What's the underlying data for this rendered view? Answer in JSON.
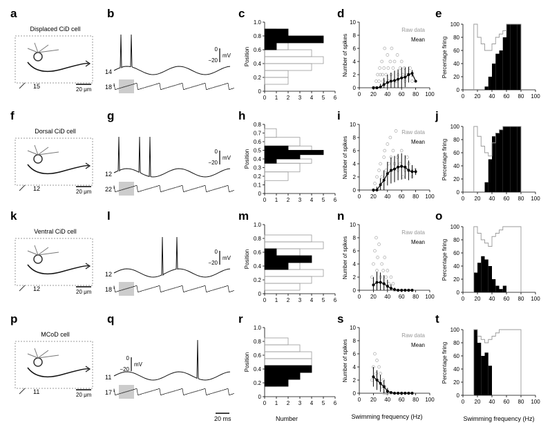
{
  "panel_letters": [
    "a",
    "b",
    "c",
    "d",
    "e",
    "f",
    "g",
    "h",
    "i",
    "j",
    "k",
    "l",
    "m",
    "n",
    "o",
    "p",
    "q",
    "r",
    "s",
    "t"
  ],
  "rows": [
    {
      "cell_label": "Displaced CiD cell",
      "seg_number": "15",
      "scale_label": "20 μm",
      "trace_top_id": "14",
      "trace_bot_id": "18",
      "volt_label": "mV",
      "volt_zero": "0",
      "volt_neg": "−20",
      "hist_ylabel": "Position",
      "spike_ylabel": "Number of spikes",
      "firing_ylabel": "Percentage firing",
      "legend_raw": "Raw data",
      "legend_mean": "Mean"
    },
    {
      "cell_label": "Dorsal CiD cell",
      "seg_number": "12",
      "scale_label": "20 μm",
      "trace_top_id": "12",
      "trace_bot_id": "22",
      "volt_label": "mV",
      "volt_zero": "0",
      "volt_neg": "−20",
      "hist_ylabel": "Position",
      "spike_ylabel": "Number of spikes",
      "firing_ylabel": "Percentage firing",
      "legend_raw": "Raw data",
      "legend_mean": "Mean"
    },
    {
      "cell_label": "Ventral CiD cell",
      "seg_number": "12",
      "scale_label": "20 μm",
      "trace_top_id": "12",
      "trace_bot_id": "18",
      "volt_label": "mV",
      "volt_zero": "0",
      "volt_neg": "−20",
      "hist_ylabel": "Position",
      "spike_ylabel": "Number of spikes",
      "firing_ylabel": "Percentage firing",
      "legend_raw": "Raw data",
      "legend_mean": "Mean"
    },
    {
      "cell_label": "MCoD cell",
      "seg_number": "11",
      "scale_label": "20 μm",
      "trace_top_id": "11",
      "trace_bot_id": "17",
      "volt_label": "mV",
      "volt_zero": "0",
      "volt_neg": "−20",
      "hist_ylabel": "Position",
      "spike_ylabel": "Number of spikes",
      "firing_ylabel": "Percentage firing",
      "legend_raw": "Raw data",
      "legend_mean": "Mean"
    }
  ],
  "bottom_labels": {
    "number": "Number",
    "swim_freq_s": "Swimming frequency (Hz)",
    "swim_freq_t": "Swimming frequency (Hz)",
    "time_scale": "20 ms"
  },
  "chart_data": [
    {
      "type": "bar",
      "panel": "c",
      "orientation": "horizontal",
      "ylabel": "Position",
      "xlabel": "Number",
      "xlim": [
        0,
        6
      ],
      "ylim": [
        0,
        1.0
      ],
      "x_ticks": [
        0,
        1,
        2,
        3,
        4,
        5,
        6
      ],
      "y_ticks": [
        0,
        0.2,
        0.4,
        0.6,
        0.8,
        1.0
      ],
      "bin_edges": [
        0.1,
        0.2,
        0.3,
        0.4,
        0.5,
        0.6,
        0.7,
        0.8,
        0.9
      ],
      "series": [
        {
          "name": "filled",
          "values": [
            0,
            0,
            0,
            0,
            0,
            1,
            5,
            2
          ]
        },
        {
          "name": "outline",
          "values": [
            2,
            2,
            4,
            5,
            4,
            2,
            2,
            1
          ]
        }
      ]
    },
    {
      "type": "scatter",
      "panel": "d",
      "ylabel": "Number of spikes",
      "xlabel": "Swimming frequency (Hz)",
      "xlim": [
        0,
        100
      ],
      "ylim": [
        0,
        10
      ],
      "x_ticks": [
        0,
        20,
        40,
        60,
        80,
        100
      ],
      "y_ticks": [
        0,
        2,
        4,
        6,
        8,
        10
      ],
      "series": [
        {
          "name": "Raw data",
          "x": [
            20,
            22,
            24,
            25,
            26,
            28,
            29,
            30,
            32,
            33,
            34,
            35,
            36,
            38,
            40,
            41,
            42,
            44,
            45,
            46,
            48,
            50,
            52,
            54,
            55,
            58,
            60,
            62,
            64,
            65,
            68,
            70,
            72,
            75
          ],
          "y": [
            0,
            0,
            1,
            0,
            2,
            1,
            3,
            2,
            4,
            2,
            1,
            3,
            6,
            2,
            5,
            3,
            1,
            4,
            2,
            6,
            3,
            4,
            1,
            5,
            2,
            3,
            4,
            2,
            3,
            1,
            2,
            2,
            3,
            1
          ]
        },
        {
          "name": "Mean",
          "x": [
            20,
            25,
            30,
            35,
            40,
            45,
            50,
            55,
            60,
            65,
            70,
            75,
            80
          ],
          "y": [
            0,
            0,
            0.1,
            0.5,
            0.8,
            1.0,
            1.1,
            1.3,
            1.5,
            1.6,
            2.0,
            2.2,
            1.0
          ],
          "err": [
            0,
            0.2,
            0.5,
            1,
            1.2,
            1.3,
            1.5,
            1.5,
            1.6,
            1.5,
            1.2,
            0.5,
            0
          ]
        }
      ]
    },
    {
      "type": "bar",
      "panel": "e",
      "ylabel": "Percentage firing",
      "xlabel": "Swimming frequency (Hz)",
      "xlim": [
        0,
        100
      ],
      "ylim": [
        0,
        100
      ],
      "x_ticks": [
        0,
        20,
        40,
        60,
        80,
        100
      ],
      "y_ticks": [
        0,
        20,
        40,
        60,
        80,
        100
      ],
      "bin_edges": [
        15,
        20,
        25,
        30,
        35,
        40,
        45,
        50,
        55,
        60,
        65,
        70,
        75,
        80
      ],
      "series": [
        {
          "name": "filled",
          "values": [
            0,
            0,
            0,
            5,
            20,
            40,
            55,
            60,
            80,
            100,
            100,
            100,
            100
          ]
        },
        {
          "name": "outline",
          "values": [
            100,
            80,
            70,
            60,
            60,
            70,
            80,
            85,
            90,
            100,
            100,
            100,
            100
          ]
        }
      ]
    },
    {
      "type": "bar",
      "panel": "h",
      "orientation": "horizontal",
      "ylabel": "Position",
      "xlabel": "Number",
      "xlim": [
        0,
        6
      ],
      "ylim": [
        0,
        0.8
      ],
      "x_ticks": [
        0,
        1,
        2,
        3,
        4,
        5,
        6
      ],
      "y_ticks": [
        0,
        0.1,
        0.2,
        0.3,
        0.4,
        0.5,
        0.6,
        0.7,
        0.8
      ],
      "bin_edges": [
        0.15,
        0.25,
        0.35,
        0.4,
        0.45,
        0.5,
        0.55,
        0.65,
        0.75
      ],
      "series": [
        {
          "name": "filled",
          "values": [
            0,
            0,
            1,
            3,
            5,
            2,
            0,
            0
          ]
        },
        {
          "name": "outline",
          "values": [
            2,
            3,
            4,
            3,
            5,
            4,
            3,
            1
          ]
        }
      ]
    },
    {
      "type": "scatter",
      "panel": "i",
      "ylabel": "Number of spikes",
      "xlabel": "Swimming frequency (Hz)",
      "xlim": [
        0,
        100
      ],
      "ylim": [
        0,
        10
      ],
      "x_ticks": [
        0,
        20,
        40,
        60,
        80,
        100
      ],
      "y_ticks": [
        0,
        2,
        4,
        6,
        8,
        10
      ],
      "series": [
        {
          "name": "Raw data",
          "x": [
            20,
            22,
            25,
            28,
            30,
            32,
            35,
            36,
            38,
            40,
            42,
            44,
            45,
            46,
            48,
            50,
            52,
            54,
            55,
            58,
            60,
            62,
            65,
            68,
            70,
            72,
            75,
            78
          ],
          "y": [
            0,
            1,
            2,
            3,
            4,
            2,
            5,
            6,
            3,
            7,
            4,
            8,
            5,
            3,
            6,
            4,
            9,
            5,
            3,
            4,
            6,
            2,
            3,
            5,
            4,
            3,
            2,
            3
          ]
        },
        {
          "name": "Mean",
          "x": [
            20,
            25,
            30,
            35,
            40,
            45,
            50,
            55,
            60,
            65,
            70,
            75,
            80
          ],
          "y": [
            0,
            0,
            0.8,
            1.5,
            2.5,
            3.0,
            3.2,
            3.5,
            3.6,
            3.5,
            3.0,
            2.8,
            2.8
          ],
          "err": [
            0,
            0.5,
            1,
            1.5,
            1.8,
            2,
            2,
            2,
            2,
            1.8,
            1.5,
            1,
            0.5
          ]
        }
      ]
    },
    {
      "type": "bar",
      "panel": "j",
      "ylabel": "Percentage firing",
      "xlabel": "Swimming frequency (Hz)",
      "xlim": [
        0,
        100
      ],
      "ylim": [
        0,
        100
      ],
      "x_ticks": [
        0,
        20,
        40,
        60,
        80,
        100
      ],
      "y_ticks": [
        0,
        20,
        40,
        60,
        80,
        100
      ],
      "bin_edges": [
        15,
        20,
        25,
        30,
        35,
        40,
        45,
        50,
        55,
        60,
        65,
        70,
        75,
        80
      ],
      "series": [
        {
          "name": "filled",
          "values": [
            0,
            0,
            0,
            15,
            50,
            85,
            90,
            95,
            100,
            100,
            100,
            100,
            100
          ]
        },
        {
          "name": "outline",
          "values": [
            100,
            85,
            70,
            60,
            55,
            75,
            90,
            95,
            100,
            100,
            100,
            100,
            100
          ]
        }
      ]
    },
    {
      "type": "bar",
      "panel": "m",
      "orientation": "horizontal",
      "ylabel": "Position",
      "xlabel": "Number",
      "xlim": [
        0,
        6
      ],
      "ylim": [
        0,
        1.0
      ],
      "x_ticks": [
        0,
        1,
        2,
        3,
        4,
        5,
        6
      ],
      "y_ticks": [
        0,
        0.2,
        0.4,
        0.6,
        0.8,
        1.0
      ],
      "bin_edges": [
        0.05,
        0.15,
        0.25,
        0.35,
        0.45,
        0.55,
        0.65,
        0.75,
        0.85
      ],
      "series": [
        {
          "name": "filled",
          "values": [
            0,
            0,
            0,
            2,
            4,
            1,
            0,
            0
          ]
        },
        {
          "name": "outline",
          "values": [
            3,
            4,
            5,
            3,
            2,
            3,
            5,
            4
          ]
        }
      ]
    },
    {
      "type": "scatter",
      "panel": "n",
      "ylabel": "Number of spikes",
      "xlabel": "Swimming frequency (Hz)",
      "xlim": [
        0,
        100
      ],
      "ylim": [
        0,
        10
      ],
      "x_ticks": [
        0,
        20,
        40,
        60,
        80,
        100
      ],
      "y_ticks": [
        0,
        2,
        4,
        6,
        8,
        10
      ],
      "series": [
        {
          "name": "Raw data",
          "x": [
            18,
            20,
            22,
            24,
            25,
            26,
            28,
            30,
            32,
            34,
            35,
            36,
            38,
            40,
            42,
            45,
            48,
            50,
            55,
            60,
            65,
            70,
            75
          ],
          "y": [
            2,
            4,
            6,
            8,
            3,
            5,
            7,
            2,
            4,
            3,
            1,
            5,
            2,
            3,
            1,
            2,
            1,
            0,
            0,
            0,
            0,
            0,
            0
          ]
        },
        {
          "name": "Mean",
          "x": [
            20,
            25,
            30,
            35,
            40,
            45,
            50,
            55,
            60,
            65,
            70,
            75
          ],
          "y": [
            0.8,
            1.2,
            1.2,
            1.0,
            0.6,
            0.3,
            0.1,
            0,
            0,
            0,
            0,
            0
          ],
          "err": [
            1.2,
            1.6,
            1.5,
            1.3,
            1.0,
            0.6,
            0.3,
            0,
            0,
            0,
            0,
            0
          ]
        }
      ]
    },
    {
      "type": "bar",
      "panel": "o",
      "ylabel": "Percentage firing",
      "xlabel": "Swimming frequency (Hz)",
      "xlim": [
        0,
        100
      ],
      "ylim": [
        0,
        100
      ],
      "x_ticks": [
        0,
        20,
        40,
        60,
        80,
        100
      ],
      "y_ticks": [
        0,
        20,
        40,
        60,
        80,
        100
      ],
      "bin_edges": [
        15,
        20,
        25,
        30,
        35,
        40,
        45,
        50,
        55,
        60,
        65,
        70,
        75,
        80
      ],
      "series": [
        {
          "name": "filled",
          "values": [
            30,
            45,
            55,
            50,
            40,
            20,
            10,
            5,
            10,
            0,
            0,
            0,
            0
          ]
        },
        {
          "name": "outline",
          "values": [
            100,
            90,
            80,
            75,
            70,
            85,
            90,
            95,
            100,
            100,
            100,
            100,
            100
          ]
        }
      ]
    },
    {
      "type": "bar",
      "panel": "r",
      "orientation": "horizontal",
      "ylabel": "Position",
      "xlabel": "Number",
      "xlim": [
        0,
        6
      ],
      "ylim": [
        0,
        1.0
      ],
      "x_ticks": [
        0,
        1,
        2,
        3,
        4,
        5,
        6
      ],
      "y_ticks": [
        0,
        0.2,
        0.4,
        0.6,
        0.8,
        1.0
      ],
      "bin_edges": [
        0.15,
        0.25,
        0.35,
        0.45,
        0.55,
        0.65,
        0.75,
        0.85
      ],
      "series": [
        {
          "name": "filled",
          "values": [
            2,
            3,
            4,
            0,
            0,
            0,
            0
          ]
        },
        {
          "name": "outline",
          "values": [
            1,
            3,
            4,
            4,
            4,
            3,
            2
          ]
        }
      ]
    },
    {
      "type": "scatter",
      "panel": "s",
      "ylabel": "Number of spikes",
      "xlabel": "Swimming frequency (Hz)",
      "xlim": [
        0,
        100
      ],
      "ylim": [
        0,
        10
      ],
      "x_ticks": [
        0,
        20,
        40,
        60,
        80,
        100
      ],
      "y_ticks": [
        0,
        2,
        4,
        6,
        8,
        10
      ],
      "series": [
        {
          "name": "Raw data",
          "x": [
            18,
            20,
            22,
            24,
            25,
            26,
            28,
            30,
            32,
            34,
            35,
            36,
            38,
            40,
            45,
            50,
            55,
            60,
            65,
            70,
            75
          ],
          "y": [
            2,
            4,
            6,
            3,
            5,
            2,
            4,
            3,
            1,
            2,
            0,
            1,
            0,
            0,
            0,
            0,
            0,
            0,
            0,
            0,
            0
          ]
        },
        {
          "name": "Mean",
          "x": [
            20,
            25,
            30,
            35,
            40,
            45,
            50,
            55,
            60,
            65,
            70,
            75
          ],
          "y": [
            2.5,
            2.0,
            1.5,
            1.0,
            0.3,
            0.1,
            0,
            0,
            0,
            0,
            0,
            0
          ],
          "err": [
            1.5,
            1.5,
            1.3,
            1.0,
            0.5,
            0.2,
            0,
            0,
            0,
            0,
            0,
            0
          ]
        }
      ]
    },
    {
      "type": "bar",
      "panel": "t",
      "ylabel": "Percentage firing",
      "xlabel": "Swimming frequency (Hz)",
      "xlim": [
        0,
        100
      ],
      "ylim": [
        0,
        100
      ],
      "x_ticks": [
        0,
        20,
        40,
        60,
        80,
        100
      ],
      "y_ticks": [
        0,
        20,
        40,
        60,
        80,
        100
      ],
      "bin_edges": [
        15,
        20,
        25,
        30,
        35,
        40,
        45,
        50,
        55,
        60,
        65,
        70,
        75,
        80
      ],
      "series": [
        {
          "name": "filled",
          "values": [
            100,
            80,
            60,
            65,
            45,
            0,
            0,
            0,
            0,
            0,
            0,
            0,
            0
          ]
        },
        {
          "name": "outline",
          "values": [
            100,
            90,
            85,
            80,
            85,
            90,
            95,
            100,
            100,
            100,
            100,
            100,
            100
          ]
        }
      ]
    }
  ]
}
